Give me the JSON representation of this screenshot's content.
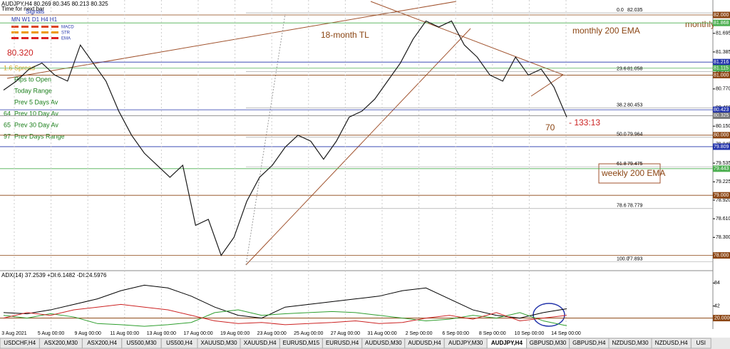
{
  "header": {
    "symbol_line": "AUDJPY,H4 80.269 80.345 80.213 80.325",
    "timer": "Time for next bar",
    "signals": "Signals",
    "timeframes": "MN  W1  D1  H4  H1",
    "signal_rows": [
      "MACD",
      "STR",
      "EMA"
    ],
    "price": "80.320",
    "stats": [
      {
        "num": "1.6",
        "label": "Spread",
        "color": "#d4a017"
      },
      {
        "num": "",
        "label": "Pips to Open",
        "color": "#1a7f1a"
      },
      {
        "num": "",
        "label": "Today Range",
        "color": "#1a7f1a"
      },
      {
        "num": "",
        "label": "Prev 5 Days Av",
        "color": "#1a7f1a"
      },
      {
        "num": "64",
        "label": "Prev 10 Day Av",
        "color": "#1a7f1a"
      },
      {
        "num": "65",
        "label": "Prev 30 Day Av",
        "color": "#1a7f1a"
      },
      {
        "num": "97",
        "label": "Prev Days Range",
        "color": "#1a7f1a"
      }
    ]
  },
  "annotations": {
    "trendline": "18-month TL",
    "monthly_ema": "monthly 200 EMA",
    "monthly": "monthly",
    "weekly_ema": "weekly 200 EMA",
    "time": "- 133:13",
    "count": "70"
  },
  "chart_data": {
    "type": "line",
    "color": "#1a1a1a",
    "values": [
      80.75,
      80.9,
      81.1,
      81.2,
      81.0,
      80.9,
      81.5,
      81.2,
      80.9,
      80.4,
      80.0,
      79.7,
      79.5,
      79.3,
      79.5,
      78.5,
      78.6,
      78.0,
      78.3,
      78.9,
      79.3,
      79.5,
      79.8,
      80.0,
      79.9,
      79.6,
      79.9,
      80.3,
      80.4,
      80.6,
      80.9,
      81.2,
      81.6,
      81.9,
      81.8,
      81.9,
      81.5,
      81.3,
      81.0,
      80.9,
      81.3,
      81.0,
      81.1,
      80.8,
      80.3
    ],
    "ylim": [
      77.77,
      82.19
    ],
    "yticks": [
      81.695,
      81.385,
      {
        "value": 81.075,
        "label": "81.075"
      },
      {
        "value": 80.77,
        "label": "80.770"
      },
      {
        "value": 80.46,
        "label": "80.460"
      },
      {
        "value": 80.15,
        "label": "80.150"
      },
      79.845,
      79.535,
      79.225,
      {
        "value": 78.92,
        "label": "78.920"
      },
      {
        "value": 78.61,
        "label": "78.610"
      },
      {
        "value": 78.3,
        "label": "78.300"
      },
      {
        "value": 77.99,
        "label": "77.990"
      }
    ],
    "levels": [
      {
        "value": 82,
        "label": "82.000",
        "color": "#8b4513"
      },
      {
        "value": 81.868,
        "label": "81.868",
        "color": "#4caf50"
      },
      {
        "value": 81.216,
        "label": "81.216",
        "color": "#2233aa"
      },
      {
        "value": 81.115,
        "label": "81.115",
        "color": "#4caf50"
      },
      {
        "value": 81,
        "label": "81.000",
        "color": "#8b4513"
      },
      {
        "value": 80.423,
        "label": "80.423",
        "color": "#2233aa"
      },
      {
        "value": 80.325,
        "label": "80.325",
        "color": "#777777"
      },
      {
        "value": 80,
        "label": "80.000",
        "color": "#8b4513"
      },
      {
        "value": 79.809,
        "label": "79.809",
        "color": "#2233aa"
      },
      {
        "value": 79.443,
        "label": "79.443",
        "color": "#4caf50"
      },
      {
        "value": 79,
        "label": "79.000",
        "color": "#8b4513"
      },
      {
        "value": 78,
        "label": "78.000",
        "color": "#8b4513"
      }
    ],
    "fib": [
      {
        "level": "0.0",
        "price": 82.035
      },
      {
        "level": "23.6",
        "price": 81.058
      },
      {
        "level": "38.2",
        "price": 80.453
      },
      {
        "level": "50.0",
        "price": 79.964
      },
      {
        "level": "61.8",
        "price": 79.475
      },
      {
        "level": "78.6",
        "price": 78.779
      },
      {
        "level": "100.0",
        "price": 77.893
      }
    ],
    "x_labels": [
      "3 Aug 2021",
      "5 Aug 00:00",
      "9 Aug 00:00",
      "11 Aug 00:00",
      "13 Aug 00:00",
      "17 Aug 00:00",
      "19 Aug 00:00",
      "23 Aug 00:00",
      "25 Aug 00:00",
      "27 Aug 00:00",
      "31 Aug 00:00",
      "2 Sep 00:00",
      "6 Sep 00:00",
      "8 Sep 00:00",
      "10 Sep 00:00",
      "14 Sep 00:00"
    ]
  },
  "indicator": {
    "title": "ADX(14) 37.2539 +DI:6.1482 -DI:24.5976",
    "ylim": [
      0,
      100
    ],
    "yticks": [
      84,
      42,
      {
        "value": 20,
        "label": "20.0000"
      }
    ],
    "series": [
      {
        "color": "#000000",
        "values": [
          30,
          28,
          35,
          45,
          55,
          70,
          80,
          75,
          60,
          40,
          25,
          20,
          40,
          45,
          50,
          55,
          60,
          70,
          75,
          55,
          35,
          25,
          20,
          30,
          37
        ]
      },
      {
        "color": "#2e9e2e",
        "values": [
          25,
          20,
          28,
          22,
          10,
          8,
          5,
          8,
          12,
          30,
          35,
          25,
          28,
          30,
          32,
          30,
          25,
          20,
          15,
          18,
          25,
          20,
          30,
          15,
          6
        ]
      },
      {
        "color": "#cc2222",
        "values": [
          20,
          30,
          25,
          35,
          40,
          45,
          40,
          35,
          25,
          15,
          10,
          12,
          8,
          10,
          12,
          15,
          10,
          12,
          20,
          25,
          18,
          30,
          15,
          20,
          25
        ]
      }
    ]
  },
  "tabs": [
    {
      "label": "USDCHF,H4"
    },
    {
      "label": "ASX200,M30"
    },
    {
      "label": "ASX200,H4"
    },
    {
      "label": "US500,M30"
    },
    {
      "label": "US500,H4"
    },
    {
      "label": "XAUUSD,M30"
    },
    {
      "label": "XAUUSD,H4"
    },
    {
      "label": "EURUSD,M15"
    },
    {
      "label": "EURUSD,H4"
    },
    {
      "label": "AUDUSD,M30"
    },
    {
      "label": "AUDUSD,H4"
    },
    {
      "label": "AUDJPY,M30"
    },
    {
      "label": "AUDJPY,H4",
      "active": true
    },
    {
      "label": "GBPUSD,M30"
    },
    {
      "label": "GBPUSD,H4"
    },
    {
      "label": "NZDUSD,M30"
    },
    {
      "label": "NZDUSD,H4"
    },
    {
      "label": "USI"
    }
  ]
}
